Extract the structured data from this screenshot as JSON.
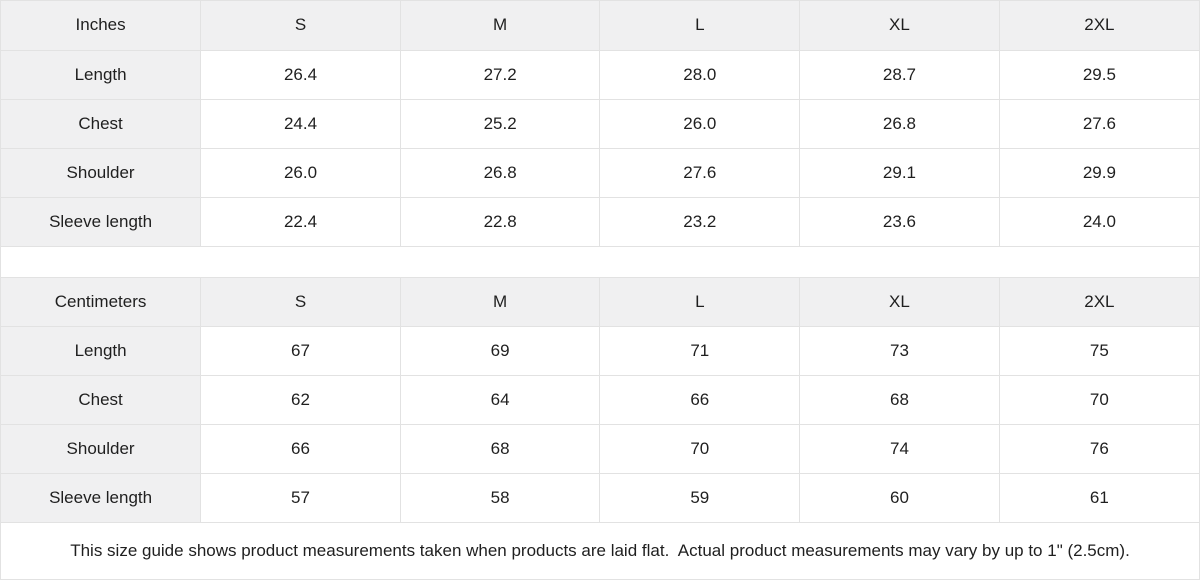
{
  "chart_data": [
    {
      "type": "table",
      "title": "Inches",
      "columns": [
        "S",
        "M",
        "L",
        "XL",
        "2XL"
      ],
      "rows": [
        {
          "label": "Length",
          "values": [
            "26.4",
            "27.2",
            "28.0",
            "28.7",
            "29.5"
          ]
        },
        {
          "label": "Chest",
          "values": [
            "24.4",
            "25.2",
            "26.0",
            "26.8",
            "27.6"
          ]
        },
        {
          "label": "Shoulder",
          "values": [
            "26.0",
            "26.8",
            "27.6",
            "29.1",
            "29.9"
          ]
        },
        {
          "label": "Sleeve length",
          "values": [
            "22.4",
            "22.8",
            "23.2",
            "23.6",
            "24.0"
          ]
        }
      ]
    },
    {
      "type": "table",
      "title": "Centimeters",
      "columns": [
        "S",
        "M",
        "L",
        "XL",
        "2XL"
      ],
      "rows": [
        {
          "label": "Length",
          "values": [
            "67",
            "69",
            "71",
            "73",
            "75"
          ]
        },
        {
          "label": "Chest",
          "values": [
            "62",
            "64",
            "66",
            "68",
            "70"
          ]
        },
        {
          "label": "Shoulder",
          "values": [
            "66",
            "68",
            "70",
            "74",
            "76"
          ]
        },
        {
          "label": "Sleeve length",
          "values": [
            "57",
            "58",
            "59",
            "60",
            "61"
          ]
        }
      ]
    }
  ],
  "footer": {
    "note": "This size guide shows product measurements taken when products are laid flat.  Actual product measurements may vary by up to 1\" (2.5cm)."
  },
  "colors": {
    "header_bg": "#f0f0f1",
    "border": "#e2e2e2",
    "text": "#1f1f1f",
    "background": "#ffffff"
  }
}
